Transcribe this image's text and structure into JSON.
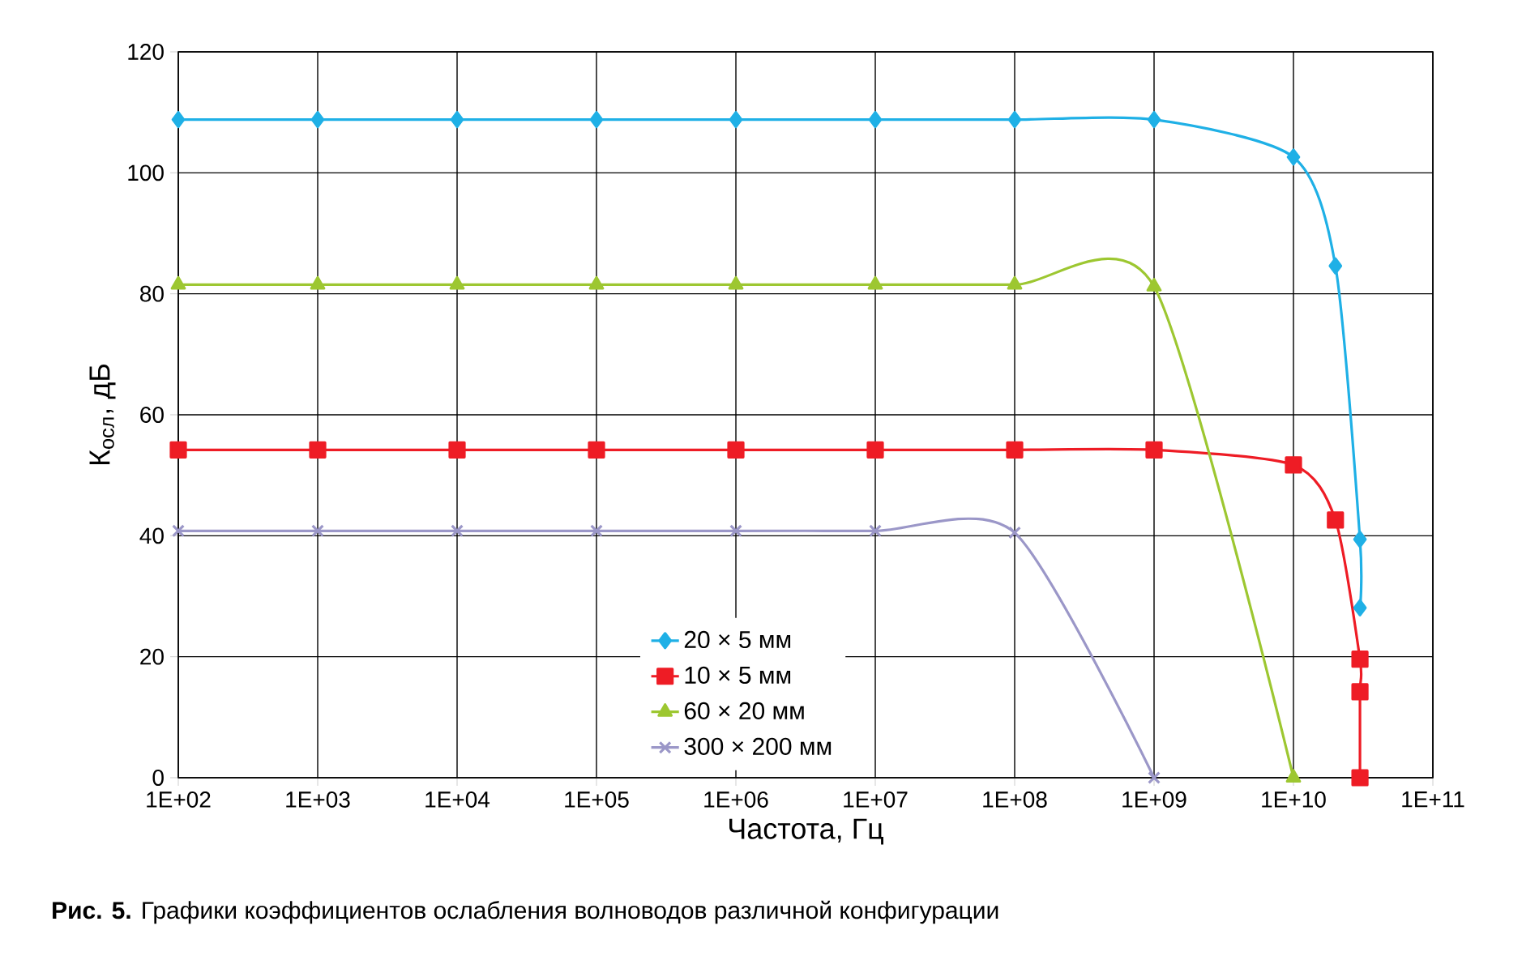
{
  "chart_data": {
    "type": "line",
    "xlabel": "Частота, Гц",
    "ylabel": "К$_{осл}$, дБ",
    "annotations": [
      "**Рис. 5.** Графики коэффициентов ослабления волноводов различной конфигурации"
    ],
    "log": "x",
    "grid": true,
    "legend": "bottom",
    "xlim": [
      100,
      100000000000
    ],
    "ylim": [
      0,
      120
    ],
    "xticks": [
      {
        "value": 100,
        "label": "1E+02"
      },
      {
        "value": 1000,
        "label": "1E+03"
      },
      {
        "value": 10000,
        "label": "1E+04"
      },
      {
        "value": 100000,
        "label": "1E+05"
      },
      {
        "value": 1000000,
        "label": "1E+06"
      },
      {
        "value": 10000000,
        "label": "1E+07"
      },
      {
        "value": 100000000,
        "label": "1E+08"
      },
      {
        "value": 1000000000,
        "label": "1E+09"
      },
      {
        "value": 10000000000,
        "label": "1E+10"
      },
      {
        "value": 100000000000,
        "label": "1E+11"
      }
    ],
    "yticks": [
      0,
      20,
      40,
      60,
      80,
      100,
      120
    ],
    "series": [
      {
        "name": "20 × 5 мм",
        "color": "#1fb0e6",
        "marker": "diamond",
        "x": [
          100,
          1000,
          10000,
          100000,
          1000000,
          10000000,
          100000000,
          1000000000,
          10000000000,
          20000000000,
          30000000000,
          30000000000
        ],
        "values": [
          108.8,
          108.8,
          108.8,
          108.8,
          108.8,
          108.8,
          108.8,
          108.8,
          102.6,
          84.6,
          39.4,
          28.1
        ]
      },
      {
        "name": "10 × 5 мм",
        "color": "#ee1c25",
        "marker": "square",
        "x": [
          100,
          1000,
          10000,
          100000,
          1000000,
          10000000,
          100000000,
          1000000000,
          10000000000,
          20000000000,
          30000000000,
          30000000000,
          30000000000
        ],
        "values": [
          54.2,
          54.2,
          54.2,
          54.2,
          54.2,
          54.2,
          54.2,
          54.2,
          51.7,
          42.6,
          19.6,
          14.2,
          0
        ]
      },
      {
        "name": "60 × 20 мм",
        "color": "#9dc731",
        "marker": "triangle",
        "x": [
          100,
          1000,
          10000,
          100000,
          1000000,
          10000000,
          100000000,
          1000000000,
          10000000000
        ],
        "values": [
          81.5,
          81.5,
          81.5,
          81.5,
          81.5,
          81.5,
          81.5,
          81.2,
          0
        ]
      },
      {
        "name": "300 × 200 мм",
        "color": "#9b97c8",
        "marker": "cross",
        "x": [
          100,
          1000,
          10000,
          100000,
          1000000,
          10000000,
          100000000,
          1000000000
        ],
        "values": [
          40.8,
          40.8,
          40.8,
          40.8,
          40.8,
          40.8,
          40.5,
          0
        ]
      }
    ]
  }
}
